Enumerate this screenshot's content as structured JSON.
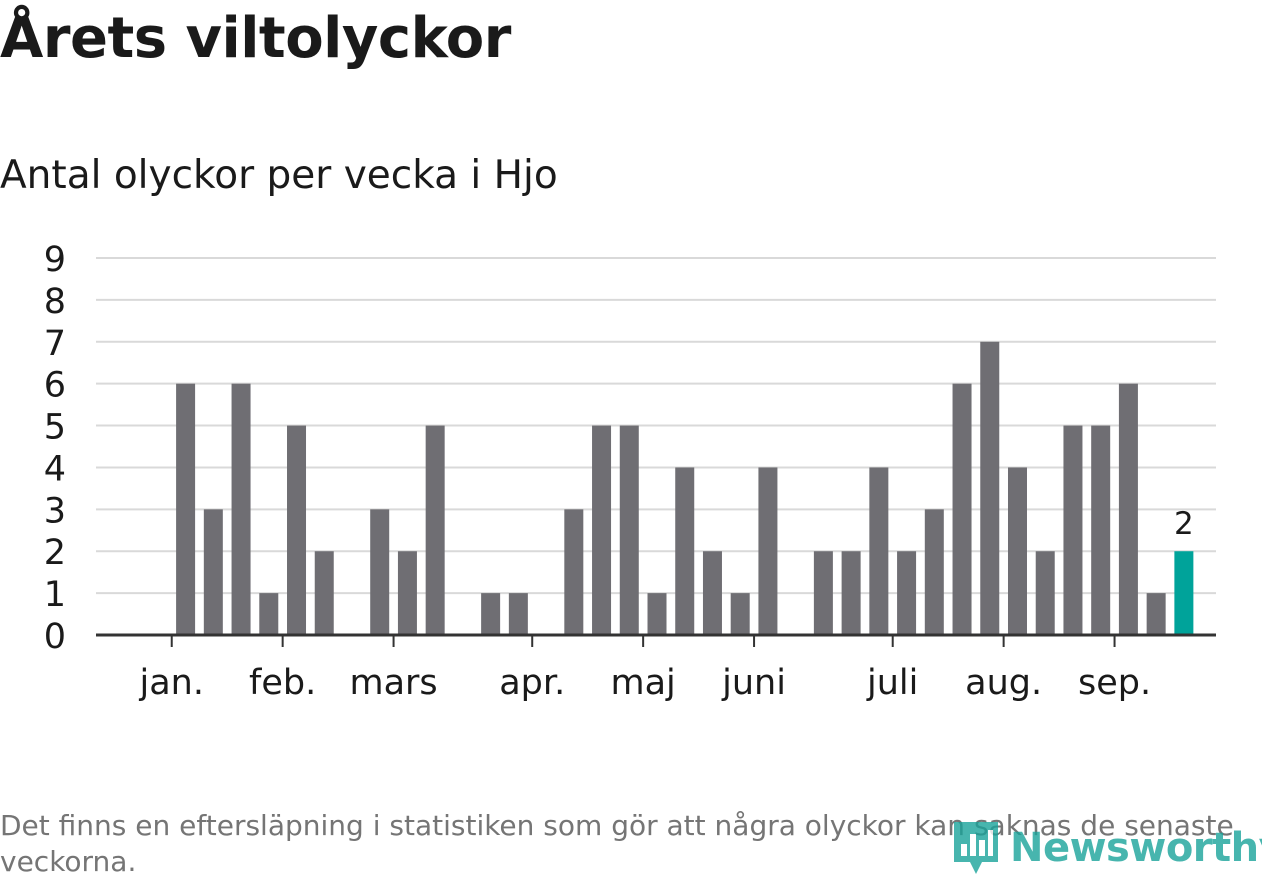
{
  "title": "Årets viltolyckor",
  "subtitle": "Antal olyckor per vecka i Hjo",
  "footnote": "Det finns en eftersläpning i statistiken som gör att några olyckor kan saknas de senaste veckorna.",
  "brand": "Newsworthy",
  "colors": {
    "bar": "#6f6e73",
    "highlight": "#00a39a",
    "grid": "#d9d9d9",
    "axis": "#333333"
  },
  "chart_data": {
    "type": "bar",
    "title": "Antal olyckor per vecka i Hjo",
    "xlabel": "",
    "ylabel": "",
    "ylim": [
      0,
      9
    ],
    "yticks": [
      0,
      1,
      2,
      3,
      4,
      5,
      6,
      7,
      8,
      9
    ],
    "grid": true,
    "values": [
      0,
      6,
      3,
      6,
      1,
      5,
      2,
      0,
      3,
      2,
      5,
      0,
      1,
      1,
      0,
      3,
      5,
      5,
      1,
      4,
      2,
      1,
      4,
      0,
      2,
      2,
      4,
      2,
      3,
      6,
      7,
      4,
      2,
      5,
      5,
      6,
      1,
      2
    ],
    "highlight_index": 37,
    "highlight_label": "2",
    "month_labels": [
      {
        "label": "jan.",
        "at": 0.5
      },
      {
        "label": "feb.",
        "at": 4.5
      },
      {
        "label": "mars",
        "at": 8.5
      },
      {
        "label": "apr.",
        "at": 13.5
      },
      {
        "label": "maj",
        "at": 17.5
      },
      {
        "label": "juni",
        "at": 21.5
      },
      {
        "label": "juli",
        "at": 26.5
      },
      {
        "label": "aug.",
        "at": 30.5
      },
      {
        "label": "sep.",
        "at": 34.5
      }
    ]
  }
}
